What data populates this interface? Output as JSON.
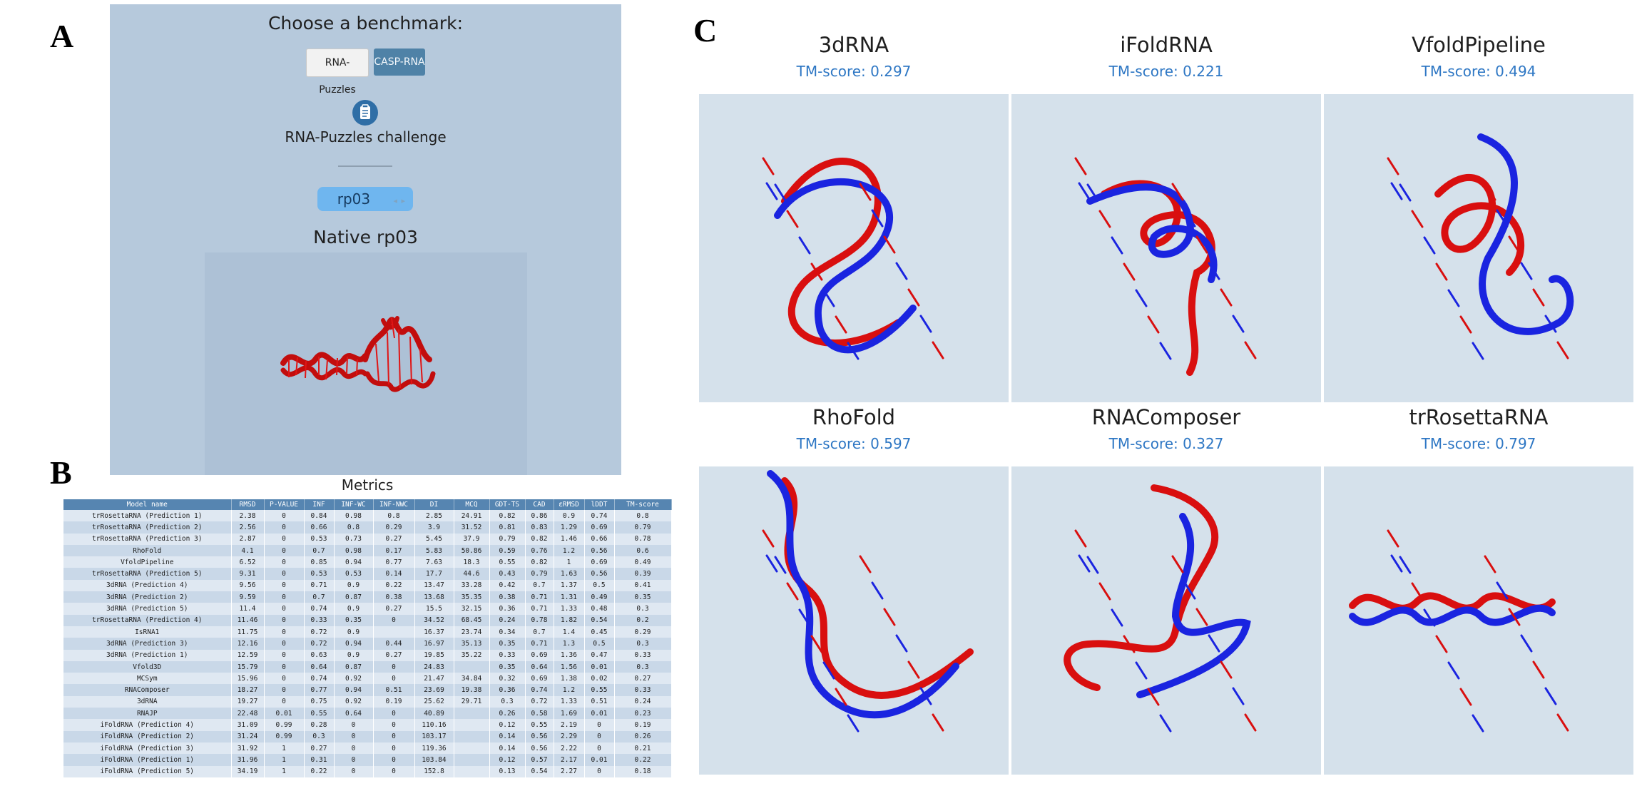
{
  "panel_labels": {
    "a": "A",
    "b": "B",
    "c": "C"
  },
  "panel_a": {
    "title": "Choose a benchmark:",
    "benchmark_buttons": [
      {
        "label": "RNA-Puzzles"
      },
      {
        "label": "CASP-RNA"
      }
    ],
    "challenge_icon": "clipboard-icon",
    "challenge_label": "RNA-Puzzles challenge",
    "puzzle_select": {
      "value": "rp03"
    },
    "native_label": "Native rp03",
    "colors": {
      "background": "#b6c9dc",
      "active_button": "#4f82a7",
      "select": "#6fb6ef"
    }
  },
  "panel_b": {
    "title": "Metrics",
    "columns": [
      "Model name",
      "RMSD",
      "P-VALUE",
      "INF",
      "INF-WC",
      "INF-NWC",
      "DI",
      "MCQ",
      "GDT-TS",
      "CAD",
      "εRMSD",
      "lDDT",
      "TM-score"
    ],
    "rows": [
      [
        "trRosettaRNA (Prediction 1)",
        "2.38",
        "0",
        "0.84",
        "0.98",
        "0.8",
        "2.85",
        "24.91",
        "0.82",
        "0.86",
        "0.9",
        "0.74",
        "0.8"
      ],
      [
        "trRosettaRNA (Prediction 2)",
        "2.56",
        "0",
        "0.66",
        "0.8",
        "0.29",
        "3.9",
        "31.52",
        "0.81",
        "0.83",
        "1.29",
        "0.69",
        "0.79"
      ],
      [
        "trRosettaRNA (Prediction 3)",
        "2.87",
        "0",
        "0.53",
        "0.73",
        "0.27",
        "5.45",
        "37.9",
        "0.79",
        "0.82",
        "1.46",
        "0.66",
        "0.78"
      ],
      [
        "RhoFold",
        "4.1",
        "0",
        "0.7",
        "0.98",
        "0.17",
        "5.83",
        "50.86",
        "0.59",
        "0.76",
        "1.2",
        "0.56",
        "0.6"
      ],
      [
        "VfoldPipeline",
        "6.52",
        "0",
        "0.85",
        "0.94",
        "0.77",
        "7.63",
        "18.3",
        "0.55",
        "0.82",
        "1",
        "0.69",
        "0.49"
      ],
      [
        "trRosettaRNA (Prediction 5)",
        "9.31",
        "0",
        "0.53",
        "0.53",
        "0.14",
        "17.7",
        "44.6",
        "0.43",
        "0.79",
        "1.63",
        "0.56",
        "0.39"
      ],
      [
        "3dRNA (Prediction 4)",
        "9.56",
        "0",
        "0.71",
        "0.9",
        "0.22",
        "13.47",
        "33.28",
        "0.42",
        "0.7",
        "1.37",
        "0.5",
        "0.41"
      ],
      [
        "3dRNA (Prediction 2)",
        "9.59",
        "0",
        "0.7",
        "0.87",
        "0.38",
        "13.68",
        "35.35",
        "0.38",
        "0.71",
        "1.31",
        "0.49",
        "0.35"
      ],
      [
        "3dRNA (Prediction 5)",
        "11.4",
        "0",
        "0.74",
        "0.9",
        "0.27",
        "15.5",
        "32.15",
        "0.36",
        "0.71",
        "1.33",
        "0.48",
        "0.3"
      ],
      [
        "trRosettaRNA (Prediction 4)",
        "11.46",
        "0",
        "0.33",
        "0.35",
        "0",
        "34.52",
        "68.45",
        "0.24",
        "0.78",
        "1.82",
        "0.54",
        "0.2"
      ],
      [
        "IsRNA1",
        "11.75",
        "0",
        "0.72",
        "0.9",
        "",
        "16.37",
        "23.74",
        "0.34",
        "0.7",
        "1.4",
        "0.45",
        "0.29"
      ],
      [
        "3dRNA (Prediction 3)",
        "12.16",
        "0",
        "0.72",
        "0.94",
        "0.44",
        "16.97",
        "35.13",
        "0.35",
        "0.71",
        "1.3",
        "0.5",
        "0.3"
      ],
      [
        "3dRNA (Prediction 1)",
        "12.59",
        "0",
        "0.63",
        "0.9",
        "0.27",
        "19.85",
        "35.22",
        "0.33",
        "0.69",
        "1.36",
        "0.47",
        "0.33"
      ],
      [
        "Vfold3D",
        "15.79",
        "0",
        "0.64",
        "0.87",
        "0",
        "24.83",
        "",
        "0.35",
        "0.64",
        "1.56",
        "0.01",
        "0.3"
      ],
      [
        "MCSym",
        "15.96",
        "0",
        "0.74",
        "0.92",
        "0",
        "21.47",
        "34.84",
        "0.32",
        "0.69",
        "1.38",
        "0.02",
        "0.27"
      ],
      [
        "RNAComposer",
        "18.27",
        "0",
        "0.77",
        "0.94",
        "0.51",
        "23.69",
        "19.38",
        "0.36",
        "0.74",
        "1.2",
        "0.55",
        "0.33"
      ],
      [
        "3dRNA",
        "19.27",
        "0",
        "0.75",
        "0.92",
        "0.19",
        "25.62",
        "29.71",
        "0.3",
        "0.72",
        "1.33",
        "0.51",
        "0.24"
      ],
      [
        "RNAJP",
        "22.48",
        "0.01",
        "0.55",
        "0.64",
        "0",
        "40.89",
        "",
        "0.26",
        "0.58",
        "1.69",
        "0.01",
        "0.23"
      ],
      [
        "iFoldRNA (Prediction 4)",
        "31.09",
        "0.99",
        "0.28",
        "0",
        "0",
        "110.16",
        "",
        "0.12",
        "0.55",
        "2.19",
        "0",
        "0.19"
      ],
      [
        "iFoldRNA (Prediction 2)",
        "31.24",
        "0.99",
        "0.3",
        "0",
        "0",
        "103.17",
        "",
        "0.14",
        "0.56",
        "2.29",
        "0",
        "0.26"
      ],
      [
        "iFoldRNA (Prediction 3)",
        "31.92",
        "1",
        "0.27",
        "0",
        "0",
        "119.36",
        "",
        "0.14",
        "0.56",
        "2.22",
        "0",
        "0.21"
      ],
      [
        "iFoldRNA (Prediction 1)",
        "31.96",
        "1",
        "0.31",
        "0",
        "0",
        "103.84",
        "",
        "0.12",
        "0.57",
        "2.17",
        "0.01",
        "0.22"
      ],
      [
        "iFoldRNA (Prediction 5)",
        "34.19",
        "1",
        "0.22",
        "0",
        "0",
        "152.8",
        "",
        "0.13",
        "0.54",
        "2.27",
        "0",
        "0.18"
      ]
    ]
  },
  "panel_c": {
    "models": [
      {
        "name": "3dRNA",
        "score": "TM-score: 0.297"
      },
      {
        "name": "iFoldRNA",
        "score": "TM-score: 0.221"
      },
      {
        "name": "VfoldPipeline",
        "score": "TM-score: 0.494"
      },
      {
        "name": "RhoFold",
        "score": "TM-score: 0.597"
      },
      {
        "name": "RNAComposer",
        "score": "TM-score: 0.327"
      },
      {
        "name": "trRosettaRNA",
        "score": "TM-score: 0.797"
      }
    ],
    "colors": {
      "native": "#d90f0f",
      "predicted": "#1a24e0",
      "viewer_bg": "#d5e1eb",
      "score": "#2e77c4"
    }
  }
}
